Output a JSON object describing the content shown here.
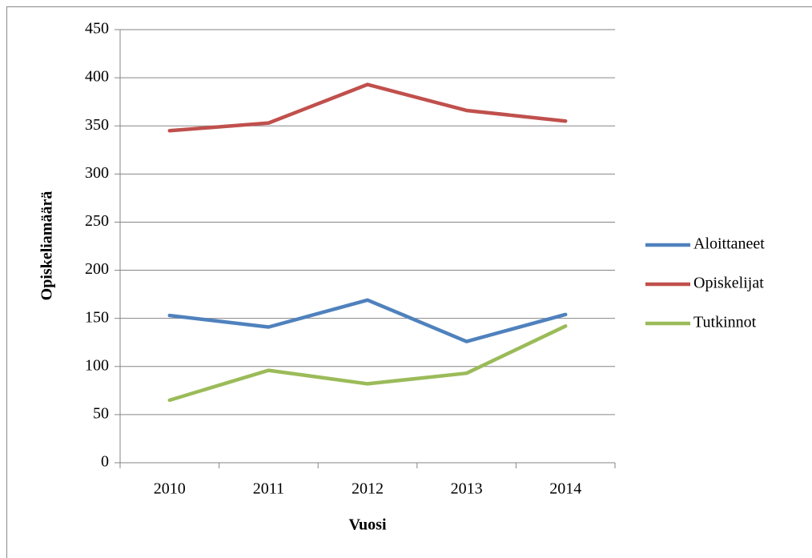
{
  "chart_data": {
    "type": "line",
    "xlabel": "Vuosi",
    "ylabel": "Opiskeliamäärä",
    "categories": [
      "2010",
      "2011",
      "2012",
      "2013",
      "2014"
    ],
    "series": [
      {
        "name": "Aloittaneet",
        "color": "#4f81bd",
        "values": [
          153,
          141,
          169,
          126,
          154
        ]
      },
      {
        "name": "Opiskelijat",
        "color": "#c0504d",
        "values": [
          345,
          353,
          393,
          366,
          355
        ]
      },
      {
        "name": "Tutkinnot",
        "color": "#9bbb59",
        "values": [
          65,
          96,
          82,
          93,
          142
        ]
      }
    ],
    "ylim": [
      0,
      450
    ],
    "yticks": [
      0,
      50,
      100,
      150,
      200,
      250,
      300,
      350,
      400,
      450
    ],
    "grid": true,
    "legend": "right"
  }
}
